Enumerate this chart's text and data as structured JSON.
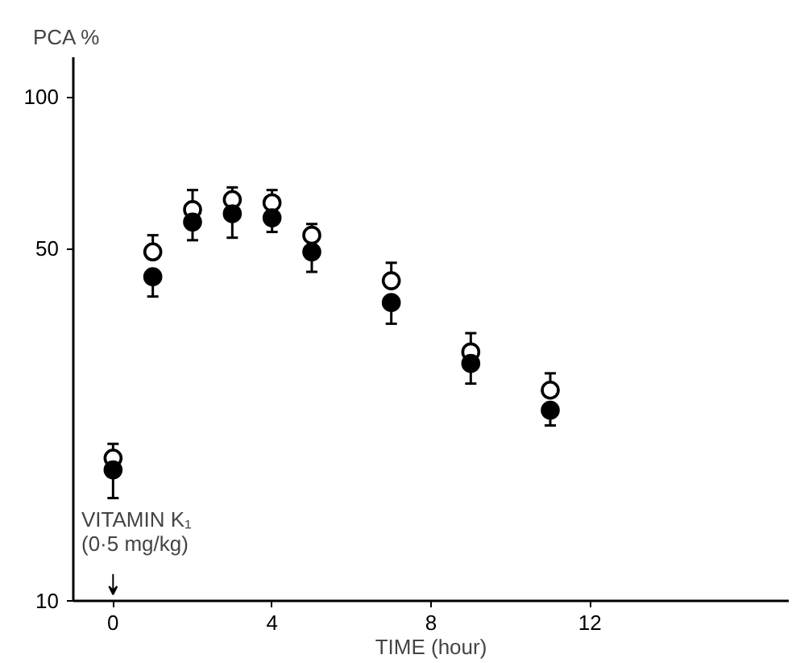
{
  "chart_data": {
    "type": "scatter",
    "xlabel": "TIME (hour)",
    "ylabel": "PCA %",
    "log": "y",
    "xlim": [
      -1,
      17
    ],
    "ylim": [
      10,
      120
    ],
    "xticks": [
      0,
      4,
      8,
      12
    ],
    "yticks": [
      10,
      50,
      100
    ],
    "grid": false,
    "marker": "circle",
    "x": [
      0,
      1,
      2,
      3,
      4,
      5,
      7,
      9,
      11
    ],
    "series": [
      {
        "color": "#ffffff",
        "values": [
          19.2,
          49.3,
          59.8,
          62.6,
          61.7,
          53.2,
          43.2,
          31.2,
          26.2
        ],
        "errors": [
          [
            19.2,
            20.5
          ],
          [
            49.3,
            53.2
          ],
          [
            59.8,
            65.4
          ],
          [
            62.6,
            66.2
          ],
          [
            61.7,
            65.4
          ],
          [
            53.2,
            56.0
          ],
          [
            43.2,
            46.9
          ],
          [
            31.2,
            34.0
          ],
          [
            26.2,
            28.3
          ]
        ]
      },
      {
        "color": "#000000",
        "values": [
          18.2,
          44.0,
          56.5,
          58.7,
          57.6,
          49.3,
          39.1,
          29.6,
          23.9
        ],
        "errors": [
          [
            16.0,
            18.2
          ],
          [
            40.2,
            44.0
          ],
          [
            52.0,
            56.5
          ],
          [
            52.6,
            58.7
          ],
          [
            54.0,
            57.6
          ],
          [
            45.0,
            49.3
          ],
          [
            35.5,
            39.1
          ],
          [
            27.0,
            29.6
          ],
          [
            22.3,
            23.9
          ]
        ]
      }
    ],
    "annotations": [
      "VITAMIN K₁\n(0·5 mg/kg)"
    ]
  }
}
